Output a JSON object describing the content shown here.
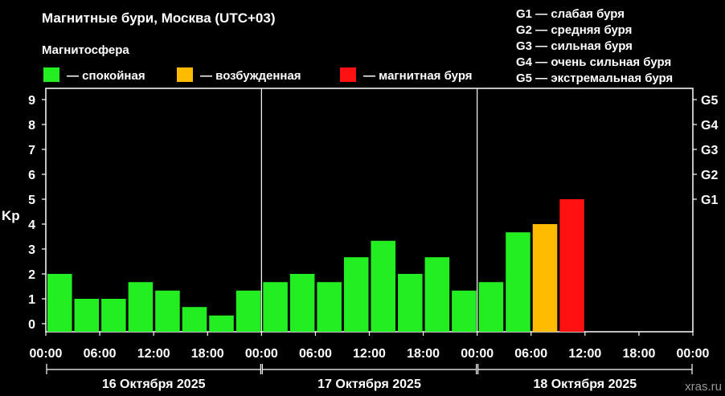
{
  "chart_data": {
    "type": "bar",
    "title": "Магнитные бури, Москва (UTC+03)",
    "legend_title": "Магнитосфера",
    "legend": [
      {
        "label": "— спокойная",
        "color": "#22ee22"
      },
      {
        "label": "— возбужденная",
        "color": "#ffbb00"
      },
      {
        "label": "— магнитная буря",
        "color": "#ff1111"
      }
    ],
    "storm_scale": [
      "G1 — слабая буря",
      "G2 — средняя буря",
      "G3 — сильная буря",
      "G4 — очень сильная буря",
      "G5 — экстремальная буря"
    ],
    "ylabel": "Kp",
    "ylim": [
      0,
      9
    ],
    "yticks": [
      "0",
      "1",
      "2",
      "3",
      "4",
      "5",
      "6",
      "7",
      "8",
      "9"
    ],
    "right_ticks": [
      "G1",
      "G2",
      "G3",
      "G4",
      "G5"
    ],
    "x_tick_labels": [
      "00:00",
      "06:00",
      "12:00",
      "18:00",
      "00:00",
      "06:00",
      "12:00",
      "18:00",
      "00:00",
      "06:00",
      "12:00",
      "18:00",
      "00:00"
    ],
    "days": [
      "16 Октября 2025",
      "17 Октября 2025",
      "18 Октября 2025"
    ],
    "values": [
      2.0,
      1.0,
      1.0,
      1.67,
      1.33,
      0.67,
      0.33,
      1.33,
      1.67,
      2.0,
      1.67,
      2.67,
      3.33,
      2.0,
      2.67,
      1.33,
      1.67,
      3.67,
      4.0,
      5.0
    ],
    "colors": {
      "quiet": "#22ee22",
      "active": "#ffbb00",
      "storm": "#ff1111"
    }
  },
  "watermark": "xras.ru"
}
